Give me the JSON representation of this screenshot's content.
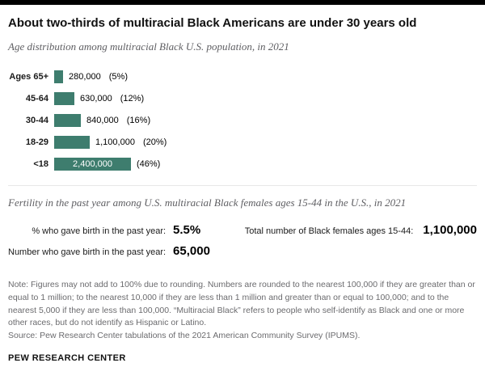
{
  "colors": {
    "bar_fill": "#3e7d6e",
    "top_bar": "#000000",
    "subtitle_text": "#5e5e62",
    "note_text": "#6b6b6e"
  },
  "header": {
    "title": "About two-thirds of multiracial Black Americans are under 30 years old",
    "subtitle": "Age distribution among multiracial Black U.S. population, in 2021"
  },
  "chart_data": {
    "type": "bar",
    "orientation": "horizontal",
    "title": "Age distribution among multiracial Black U.S. population, in 2021",
    "categories": [
      "Ages 65+",
      "45-64",
      "30-44",
      "18-29",
      "<18"
    ],
    "values": [
      280000,
      630000,
      840000,
      1100000,
      2400000
    ],
    "labels": [
      {
        "value": "280,000",
        "pct": "(5%)",
        "inside": false
      },
      {
        "value": "630,000",
        "pct": "(12%)",
        "inside": false
      },
      {
        "value": "840,000",
        "pct": "(16%)",
        "inside": false
      },
      {
        "value": "1,100,000",
        "pct": "(20%)",
        "inside": false
      },
      {
        "value": "2,400,000",
        "pct": "(46%)",
        "inside": true
      }
    ]
  },
  "fertility": {
    "heading": "Fertility in the past year among U.S. multiracial Black females ages 15-44 in the U.S., in 2021",
    "stats": [
      {
        "label": "% who gave birth in the past year:",
        "value": "5.5%"
      },
      {
        "label": "Number who gave birth in the past year:",
        "value": "65,000"
      },
      {
        "label": "Total number of Black females ages 15-44:",
        "value": "1,100,000"
      }
    ]
  },
  "note": "Note: Figures may not add to 100% due to rounding. Numbers are rounded to the nearest 100,000 if they are greater than or equal to 1 million; to the nearest 10,000 if they are less than 1 million and greater than or equal to 100,000; and to the nearest 5,000 if they are less than 100,000. “Multiracial Black” refers to people who self-identify as Black and one or more other races, but do not identify as Hispanic or Latino.",
  "source": "Source: Pew Research Center tabulations of the 2021 American Community Survey (IPUMS).",
  "footer": "PEW RESEARCH CENTER"
}
